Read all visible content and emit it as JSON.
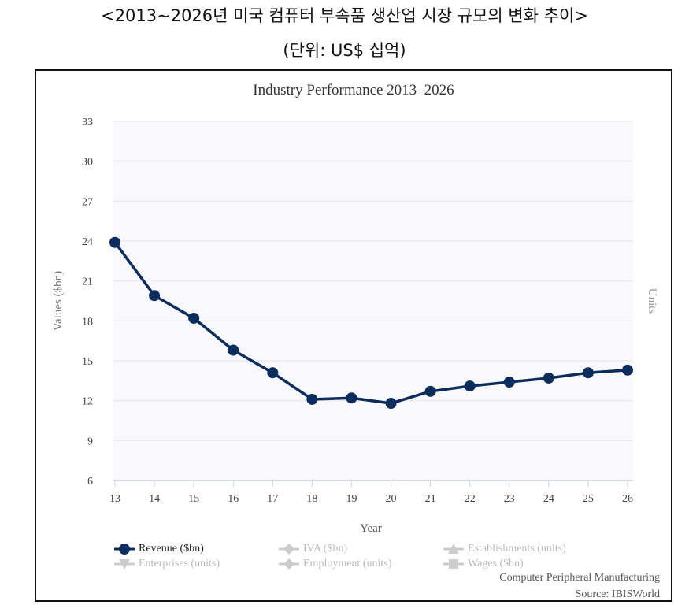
{
  "header": {
    "title": "<2013~2026년 미국 컴퓨터 부속품 생산업 시장 규모의 변화 추이>",
    "unit": "(단위: US$ 십억)"
  },
  "chart_data": {
    "type": "line",
    "title": "Industry Performance 2013–2026",
    "xlabel": "Year",
    "ylabel": "Values ($bn)",
    "y2label": "Units",
    "categories": [
      "13",
      "14",
      "15",
      "16",
      "17",
      "18",
      "19",
      "20",
      "21",
      "22",
      "23",
      "24",
      "25",
      "26"
    ],
    "ylim": [
      6,
      33
    ],
    "yticks": [
      "6",
      "9",
      "12",
      "15",
      "18",
      "21",
      "24",
      "27",
      "30",
      "33"
    ],
    "grid": true,
    "legend_position": "bottom-left",
    "series": [
      {
        "name": "Revenue ($bn)",
        "values": [
          23.9,
          19.9,
          18.2,
          15.8,
          14.1,
          12.1,
          12.2,
          11.8,
          12.7,
          13.1,
          13.4,
          13.7,
          14.1,
          14.3
        ],
        "color": "#0b2d5e",
        "active": true
      }
    ],
    "legend": [
      {
        "label": "Revenue ($bn)",
        "marker": "circle",
        "active": true
      },
      {
        "label": "IVA ($bn)",
        "marker": "diamond",
        "active": false
      },
      {
        "label": "Establishments (units)",
        "marker": "triangle-up",
        "active": false
      },
      {
        "label": "Enterprises (units)",
        "marker": "triangle-down",
        "active": false
      },
      {
        "label": "Employment (units)",
        "marker": "diamond",
        "active": false
      },
      {
        "label": "Wages ($bn)",
        "marker": "square",
        "active": false
      }
    ],
    "credits": [
      "Computer Peripheral Manufacturing",
      "Source: IBISWorld"
    ]
  },
  "colors": {
    "series": "#0b2d5e",
    "inactive": "#cccccc",
    "plot_bg": "#f9f9fb",
    "grid": "#e8e8ee",
    "axis": "#c8d4ec"
  }
}
